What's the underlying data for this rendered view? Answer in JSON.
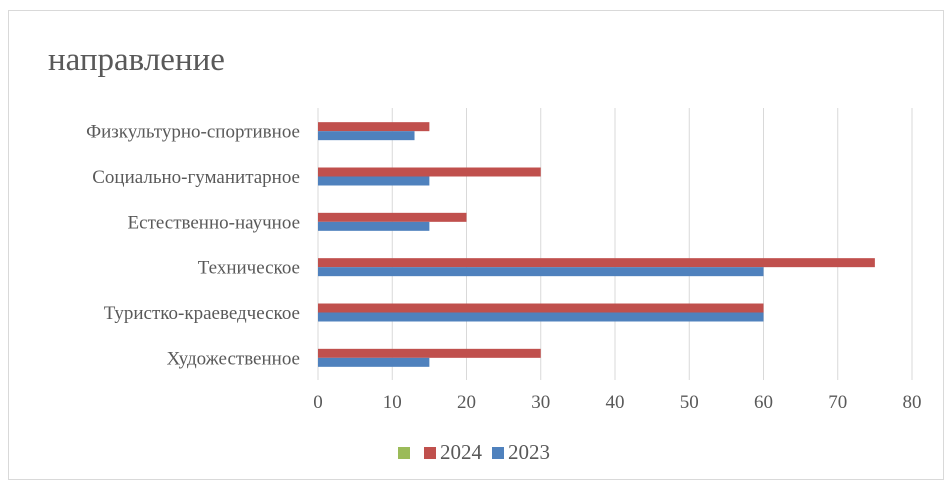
{
  "chart_data": {
    "type": "bar",
    "orientation": "horizontal",
    "title": "направление",
    "xlabel": "",
    "ylabel": "",
    "categories": [
      "Физкультурно-спортивное",
      "Социально-гуманитарное",
      "Естественно-научное",
      "Техническое",
      "Туристко-краеведческое",
      "Художественное"
    ],
    "series": [
      {
        "name": "",
        "color": "#9bbb59",
        "values": [
          0,
          0,
          0,
          0,
          0,
          0
        ]
      },
      {
        "name": "2024",
        "color": "#c0504d",
        "values": [
          15,
          30,
          20,
          75,
          60,
          30
        ]
      },
      {
        "name": "2023",
        "color": "#4f81bd",
        "values": [
          13,
          15,
          15,
          60,
          60,
          15
        ]
      }
    ],
    "xlim": [
      0,
      80
    ],
    "xticks": [
      "0",
      "10",
      "20",
      "30",
      "40",
      "50",
      "60",
      "70",
      "80"
    ],
    "grid": true,
    "legend_position": "bottom"
  }
}
